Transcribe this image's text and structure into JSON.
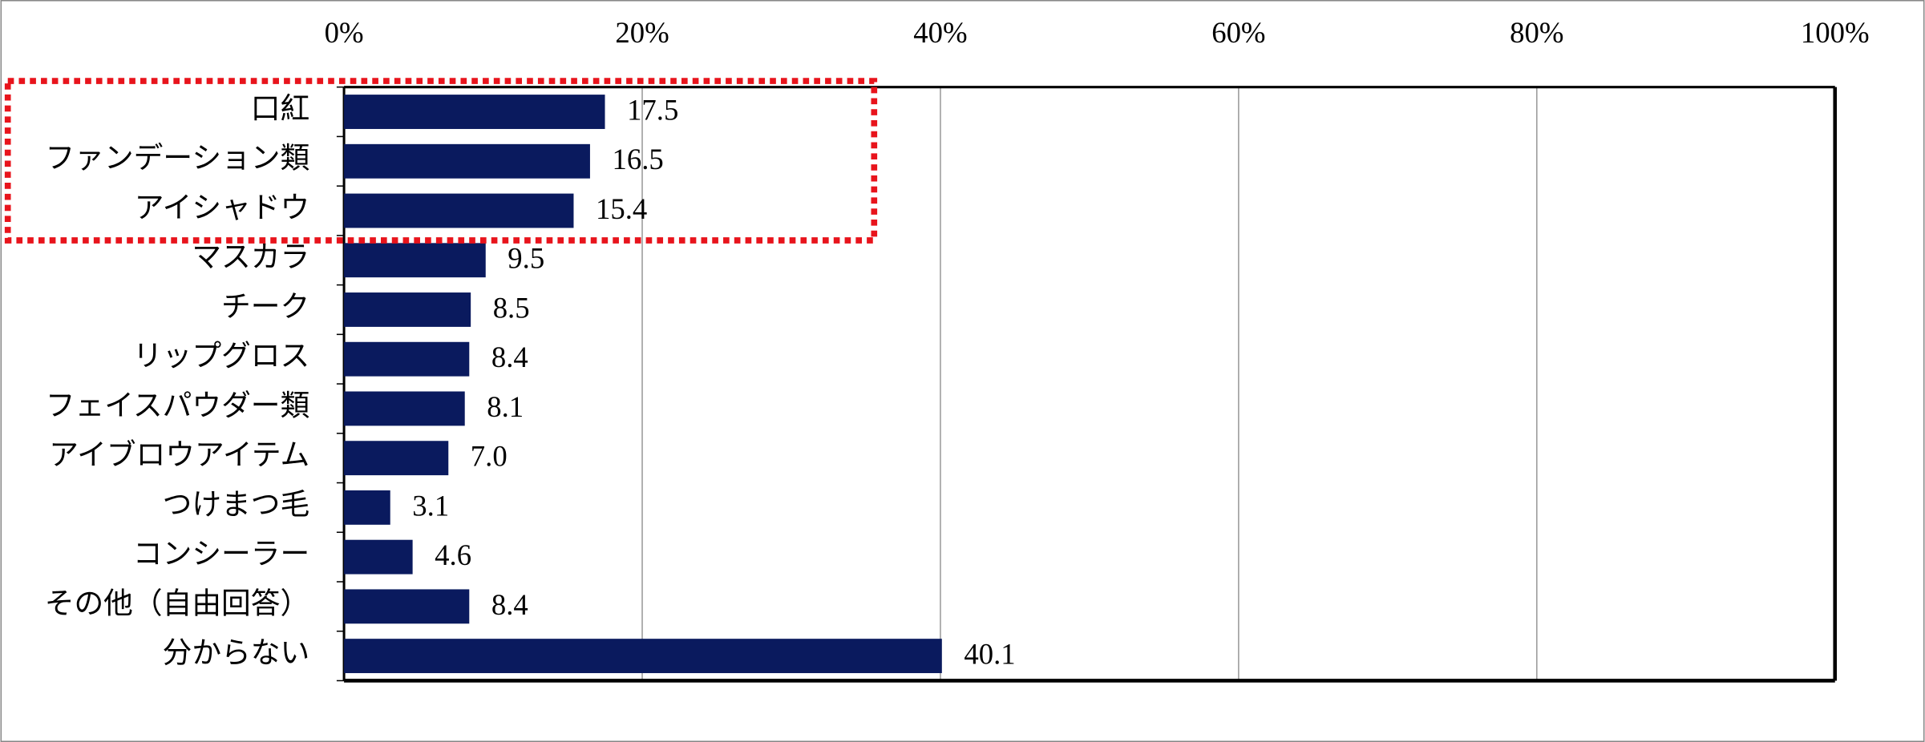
{
  "chart_data": {
    "type": "bar",
    "orientation": "horizontal",
    "categories": [
      "口紅",
      "ファンデーション類",
      "アイシャドウ",
      "マスカラ",
      "チーク",
      "リップグロス",
      "フェイスパウダー類",
      "アイブロウアイテム",
      "つけまつ毛",
      "コンシーラー",
      "その他（自由回答）",
      "分からない"
    ],
    "values": [
      17.5,
      16.5,
      15.4,
      9.5,
      8.5,
      8.4,
      8.1,
      7.0,
      3.1,
      4.6,
      8.4,
      40.1
    ],
    "value_labels": [
      "17.5",
      "16.5",
      "15.4",
      "9.5",
      "8.5",
      "8.4",
      "8.1",
      "7.0",
      "3.1",
      "4.6",
      "8.4",
      "40.1"
    ],
    "color": "#0a1a5e",
    "xlim": [
      0,
      100
    ],
    "xticks": [
      {
        "value": 0,
        "label": "0%"
      },
      {
        "value": 20,
        "label": "20%"
      },
      {
        "value": 40,
        "label": "40%"
      },
      {
        "value": 60,
        "label": "60%"
      },
      {
        "value": 80,
        "label": "80%"
      },
      {
        "value": 100,
        "label": "100%"
      }
    ],
    "grid": true
  }
}
